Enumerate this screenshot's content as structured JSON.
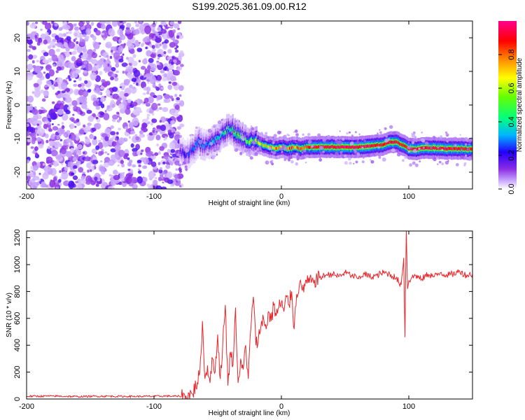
{
  "title": "S199.2025.361.09.00.R12",
  "colors": {
    "snr_line": "#e8252a",
    "axis": "#000000",
    "colormap": [
      "#ffffff",
      "#d7b8ff",
      "#8a2be2",
      "#4b00e0",
      "#0000ff",
      "#00c8ff",
      "#00ff80",
      "#80ff00",
      "#ffff00",
      "#ff8000",
      "#ff0000",
      "#ff00a0"
    ]
  },
  "chart_data": [
    {
      "type": "heatmap",
      "name": "spectrogram",
      "xlabel": "Height of straight line (km)",
      "ylabel": "Frequency (Hz)",
      "xlim": [
        -200,
        150
      ],
      "ylim": [
        -25,
        25
      ],
      "xticks": [
        -200,
        -100,
        0,
        100
      ],
      "xtick_labels": [
        "-200",
        "-100",
        "0",
        "100"
      ],
      "yticks": [
        -20,
        -10,
        0,
        10,
        20
      ],
      "ytick_labels": [
        "-20",
        "-10",
        "0",
        "10",
        "20"
      ],
      "colorbar": {
        "label": "Normalized spectral amplitude",
        "range": [
          0,
          1
        ],
        "ticks": [
          0,
          0.2,
          0.4,
          0.6,
          0.8
        ],
        "tick_labels": [
          "0.0",
          "0.2",
          "0.4",
          "0.6",
          "0.8"
        ]
      },
      "noise_region": [
        -200,
        -78
      ],
      "ridge": {
        "x": [
          -80,
          -75,
          -70,
          -65,
          -60,
          -55,
          -50,
          -45,
          -40,
          -35,
          -30,
          -25,
          -20,
          -15,
          -10,
          -5,
          0,
          5,
          10,
          15,
          20,
          30,
          40,
          50,
          60,
          70,
          75,
          80,
          85,
          90,
          95,
          100,
          105,
          110,
          120,
          130,
          140,
          150
        ],
        "freq": [
          -14,
          -15,
          -13,
          -11,
          -12,
          -11,
          -10,
          -8,
          -7,
          -9,
          -10,
          -11,
          -11,
          -12,
          -12.5,
          -13,
          -12.5,
          -13,
          -12.5,
          -13,
          -12.5,
          -12.5,
          -12.5,
          -12.5,
          -12.5,
          -12.2,
          -12,
          -11.8,
          -11,
          -11,
          -12,
          -13,
          -13.2,
          -12.8,
          -12.8,
          -13,
          -13,
          -13.2
        ],
        "amplitude": [
          0.2,
          0.25,
          0.3,
          0.35,
          0.3,
          0.35,
          0.4,
          0.45,
          0.5,
          0.5,
          0.55,
          0.6,
          0.65,
          0.7,
          0.75,
          0.8,
          0.85,
          0.85,
          0.9,
          0.9,
          0.9,
          0.95,
          0.95,
          0.95,
          0.95,
          0.95,
          0.9,
          0.9,
          0.95,
          0.9,
          0.9,
          0.95,
          0.95,
          0.95,
          0.95,
          0.95,
          0.9,
          0.9
        ]
      }
    },
    {
      "type": "line",
      "name": "snr",
      "xlabel": "Height of straight line (km)",
      "ylabel": "SNR (10 * v/v)",
      "xlim": [
        -200,
        150
      ],
      "ylim": [
        0,
        1250
      ],
      "xticks": [
        -200,
        -100,
        0,
        100
      ],
      "xtick_labels": [
        "-200",
        "-100",
        "0",
        "100"
      ],
      "yticks": [
        0,
        200,
        400,
        600,
        800,
        1000,
        1200
      ],
      "ytick_labels": [
        "0",
        "200",
        "400",
        "600",
        "800",
        "1000",
        "1200"
      ],
      "series": [
        {
          "name": "SNR",
          "x": [
            -200,
            -180,
            -160,
            -140,
            -120,
            -100,
            -90,
            -80,
            -75,
            -70,
            -66,
            -64,
            -62,
            -60,
            -58,
            -56,
            -54,
            -52,
            -50,
            -48,
            -46,
            -44,
            -42,
            -40,
            -38,
            -36,
            -34,
            -32,
            -30,
            -28,
            -26,
            -24,
            -22,
            -20,
            -18,
            -16,
            -14,
            -12,
            -10,
            -8,
            -6,
            -4,
            -2,
            0,
            2,
            4,
            6,
            8,
            10,
            12,
            14,
            16,
            20,
            25,
            30,
            35,
            40,
            45,
            50,
            55,
            60,
            65,
            70,
            75,
            80,
            85,
            90,
            94,
            96,
            97,
            98,
            99,
            100,
            102,
            105,
            110,
            115,
            120,
            125,
            130,
            135,
            140,
            145,
            150
          ],
          "values": [
            20,
            22,
            18,
            21,
            19,
            20,
            22,
            20,
            25,
            40,
            120,
            200,
            580,
            150,
            250,
            120,
            300,
            200,
            480,
            150,
            420,
            700,
            100,
            350,
            250,
            680,
            120,
            300,
            220,
            400,
            150,
            520,
            760,
            400,
            450,
            550,
            600,
            520,
            650,
            580,
            700,
            620,
            680,
            720,
            650,
            760,
            700,
            800,
            520,
            780,
            840,
            820,
            860,
            880,
            900,
            920,
            930,
            910,
            940,
            920,
            900,
            930,
            910,
            920,
            940,
            930,
            900,
            850,
            1050,
            460,
            1250,
            820,
            880,
            900,
            920,
            890,
            930,
            910,
            940,
            920,
            930,
            950,
            920,
            930
          ]
        }
      ]
    }
  ]
}
